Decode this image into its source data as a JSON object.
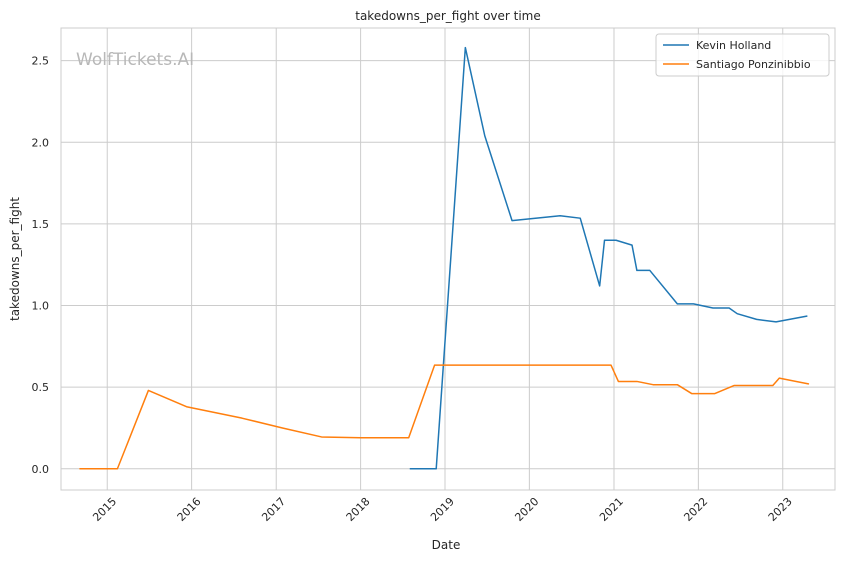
{
  "chart_data": {
    "type": "line",
    "title": "takedowns_per_fight over time",
    "xlabel": "Date",
    "ylabel": "takedowns_per_fight",
    "watermark": "WolfTickets.AI",
    "x_ticks": [
      "2015",
      "2016",
      "2017",
      "2018",
      "2019",
      "2020",
      "2021",
      "2022",
      "2023"
    ],
    "y_ticks": [
      "0.0",
      "0.5",
      "1.0",
      "1.5",
      "2.0",
      "2.5"
    ],
    "xlim": [
      "2014-06-15",
      "2023-08-15"
    ],
    "ylim": [
      -0.13,
      2.7
    ],
    "grid": true,
    "legend_position": "top-right",
    "series": [
      {
        "name": "Kevin Holland",
        "color": "#1f77b4",
        "points": [
          [
            "2018-08-04",
            0.0
          ],
          [
            "2018-11-24",
            0.0
          ],
          [
            "2019-03-30",
            2.58
          ],
          [
            "2019-06-22",
            2.04
          ],
          [
            "2019-10-18",
            1.52
          ],
          [
            "2020-05-13",
            1.55
          ],
          [
            "2020-08-08",
            1.535
          ],
          [
            "2020-10-31",
            1.12
          ],
          [
            "2020-11-21",
            1.4
          ],
          [
            "2021-01-10",
            1.4
          ],
          [
            "2021-03-20",
            1.37
          ],
          [
            "2021-04-10",
            1.215
          ],
          [
            "2021-06-05",
            1.215
          ],
          [
            "2021-10-02",
            1.01
          ],
          [
            "2021-12-11",
            1.01
          ],
          [
            "2022-03-05",
            0.985
          ],
          [
            "2022-05-14",
            0.985
          ],
          [
            "2022-06-18",
            0.95
          ],
          [
            "2022-09-10",
            0.915
          ],
          [
            "2022-12-03",
            0.9
          ],
          [
            "2023-04-15",
            0.935
          ]
        ]
      },
      {
        "name": "Santiago Ponzinibbio",
        "color": "#ff7f0e",
        "points": [
          [
            "2014-09-05",
            0.0
          ],
          [
            "2015-02-14",
            0.0
          ],
          [
            "2015-06-28",
            0.48
          ],
          [
            "2015-12-10",
            0.38
          ],
          [
            "2016-08-06",
            0.31
          ],
          [
            "2017-01-28",
            0.25
          ],
          [
            "2017-07-16",
            0.195
          ],
          [
            "2018-01-01",
            0.19
          ],
          [
            "2018-07-28",
            0.19
          ],
          [
            "2018-11-17",
            0.635
          ],
          [
            "2020-12-19",
            0.635
          ],
          [
            "2021-01-20",
            0.535
          ],
          [
            "2021-04-10",
            0.535
          ],
          [
            "2021-06-19",
            0.515
          ],
          [
            "2021-10-02",
            0.515
          ],
          [
            "2021-12-04",
            0.46
          ],
          [
            "2022-03-12",
            0.46
          ],
          [
            "2022-06-04",
            0.51
          ],
          [
            "2022-11-19",
            0.51
          ],
          [
            "2022-12-17",
            0.555
          ],
          [
            "2023-04-22",
            0.52
          ]
        ]
      }
    ]
  }
}
